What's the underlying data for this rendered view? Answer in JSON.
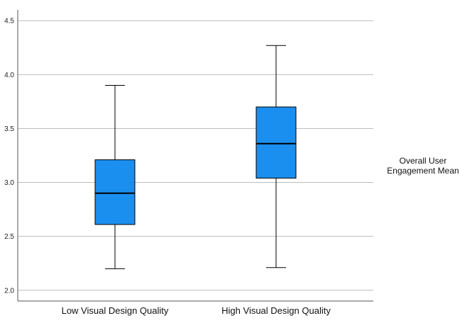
{
  "chart_data": {
    "type": "box",
    "title": "",
    "xlabel": "",
    "ylabel": "",
    "ylim": [
      1.9,
      4.6
    ],
    "yticks": [
      "2.0",
      "2.5",
      "3.0",
      "3.5",
      "4.0",
      "4.5"
    ],
    "grid": true,
    "legend_position": "right",
    "legend_text": [
      "Overall User",
      "Engagement Mean"
    ],
    "categories": [
      "Low Visual Design Quality",
      "High Visual Design Quality"
    ],
    "boxes": [
      {
        "min": 2.2,
        "q1": 2.61,
        "median": 2.9,
        "q3": 3.21,
        "max": 3.9
      },
      {
        "min": 2.21,
        "q1": 3.04,
        "median": 3.36,
        "q3": 3.7,
        "max": 4.27
      }
    ],
    "colors": {
      "box_fill": "#1a8ff0",
      "stroke": "#000000",
      "grid": "#bdbdbd",
      "axis": "#555555"
    }
  }
}
